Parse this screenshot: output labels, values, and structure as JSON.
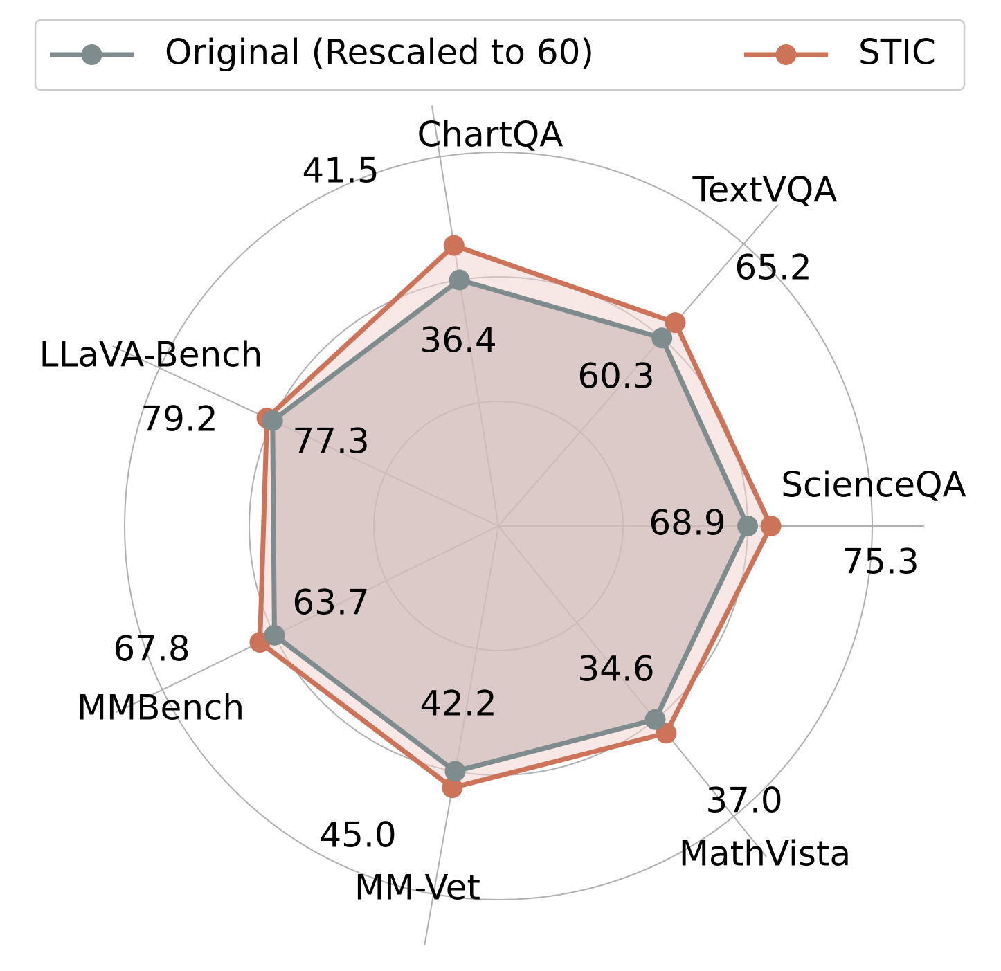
{
  "chart_data": {
    "type": "radar",
    "categories": [
      "ScienceQA",
      "TextVQA",
      "ChartQA",
      "LLaVA-Bench",
      "MMBench",
      "MM-Vet",
      "MathVista"
    ],
    "series": [
      {
        "name": "Original (Rescaled to 60)",
        "color": "#7f8c8d",
        "fill_color": "#c8b5b2",
        "normalized": [
          60,
          60,
          60,
          60,
          60,
          60,
          60
        ],
        "labels": [
          "68.9",
          "60.3",
          "36.4",
          "77.3",
          "63.7",
          "42.2",
          "34.6"
        ]
      },
      {
        "name": "STIC",
        "color": "#cd735a",
        "fill_color": "#f2d6d0",
        "normalized": [
          65.6,
          64.9,
          68.4,
          61.5,
          63.9,
          64.0,
          64.2
        ],
        "labels": [
          "75.3",
          "65.2",
          "41.5",
          "79.2",
          "67.8",
          "45.0",
          "37.0"
        ]
      }
    ],
    "radial_range": [
      0,
      90
    ],
    "grid_rings": [
      30,
      60,
      90
    ],
    "grid": true,
    "legend_position": "top"
  }
}
